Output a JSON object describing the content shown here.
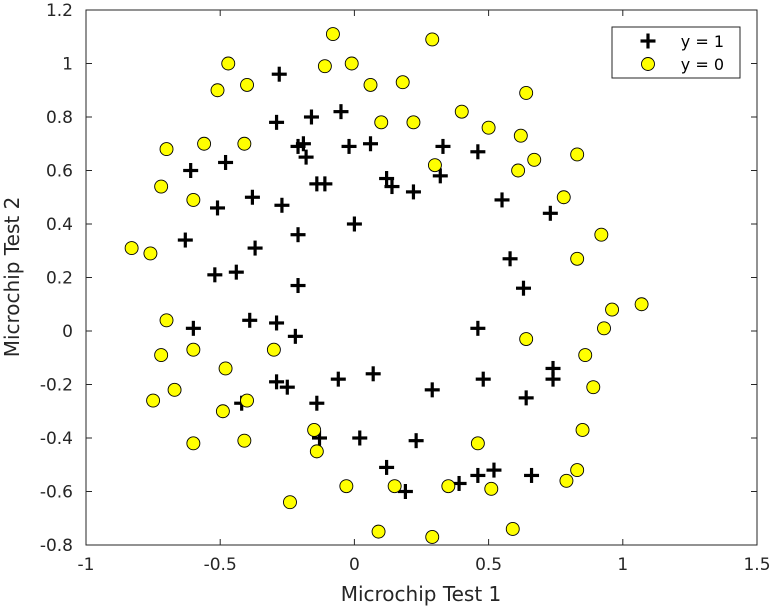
{
  "chart_data": {
    "type": "scatter",
    "title": "",
    "xlabel": "Microchip Test 1",
    "ylabel": "Microchip Test 2",
    "xlim": [
      -1,
      1.5
    ],
    "ylim": [
      -0.8,
      1.2
    ],
    "x_ticks": [
      -1,
      -0.5,
      0,
      0.5,
      1,
      1.5
    ],
    "x_tick_labels": [
      "-1",
      "-0.5",
      "0",
      "0.5",
      "1",
      "1.5"
    ],
    "y_ticks": [
      -0.8,
      -0.6,
      -0.4,
      -0.2,
      0,
      0.2,
      0.4,
      0.6,
      0.8,
      1,
      1.2
    ],
    "y_tick_labels": [
      "-0.8",
      "-0.6",
      "-0.4",
      "-0.2",
      "0",
      "0.2",
      "0.4",
      "0.6",
      "0.8",
      "1",
      "1.2"
    ],
    "grid": false,
    "legend_position": "top-right",
    "colors": {
      "positive": "#000000",
      "negative_fill": "#ffff00",
      "negative_edge": "#000000"
    },
    "series": [
      {
        "name": "y = 1",
        "marker": "plus",
        "points": [
          [
            -0.28,
            0.96
          ],
          [
            -0.16,
            0.8
          ],
          [
            -0.05,
            0.82
          ],
          [
            -0.29,
            0.78
          ],
          [
            -0.02,
            0.69
          ],
          [
            -0.19,
            0.7
          ],
          [
            -0.21,
            0.69
          ],
          [
            -0.18,
            0.65
          ],
          [
            0.06,
            0.7
          ],
          [
            -0.48,
            0.63
          ],
          [
            -0.61,
            0.6
          ],
          [
            0.33,
            0.69
          ],
          [
            0.46,
            0.67
          ],
          [
            -0.14,
            0.55
          ],
          [
            -0.11,
            0.55
          ],
          [
            0.12,
            0.57
          ],
          [
            0.14,
            0.54
          ],
          [
            0.22,
            0.52
          ],
          [
            0.32,
            0.58
          ],
          [
            -0.38,
            0.5
          ],
          [
            -0.51,
            0.46
          ],
          [
            -0.27,
            0.47
          ],
          [
            0.55,
            0.49
          ],
          [
            0.73,
            0.44
          ],
          [
            0.0,
            0.4
          ],
          [
            -0.21,
            0.36
          ],
          [
            -0.37,
            0.31
          ],
          [
            -0.63,
            0.34
          ],
          [
            0.58,
            0.27
          ],
          [
            -0.52,
            0.21
          ],
          [
            -0.44,
            0.22
          ],
          [
            -0.21,
            0.17
          ],
          [
            0.63,
            0.16
          ],
          [
            -0.39,
            0.04
          ],
          [
            -0.29,
            0.03
          ],
          [
            -0.6,
            0.01
          ],
          [
            0.46,
            0.01
          ],
          [
            -0.22,
            -0.02
          ],
          [
            0.74,
            -0.14
          ],
          [
            -0.06,
            -0.18
          ],
          [
            0.07,
            -0.16
          ],
          [
            -0.29,
            -0.19
          ],
          [
            -0.25,
            -0.21
          ],
          [
            0.48,
            -0.18
          ],
          [
            0.74,
            -0.18
          ],
          [
            0.29,
            -0.22
          ],
          [
            -0.42,
            -0.27
          ],
          [
            0.64,
            -0.25
          ],
          [
            -0.14,
            -0.27
          ],
          [
            -0.13,
            -0.4
          ],
          [
            0.02,
            -0.4
          ],
          [
            0.23,
            -0.41
          ],
          [
            0.12,
            -0.51
          ],
          [
            0.19,
            -0.6
          ],
          [
            0.39,
            -0.57
          ],
          [
            0.46,
            -0.54
          ],
          [
            0.52,
            -0.52
          ],
          [
            0.66,
            -0.54
          ]
        ]
      },
      {
        "name": "y = 0",
        "marker": "circle",
        "points": [
          [
            -0.08,
            1.11
          ],
          [
            0.29,
            1.09
          ],
          [
            -0.47,
            1.0
          ],
          [
            -0.11,
            0.99
          ],
          [
            -0.01,
            1.0
          ],
          [
            -0.51,
            0.9
          ],
          [
            -0.4,
            0.92
          ],
          [
            0.06,
            0.92
          ],
          [
            0.18,
            0.93
          ],
          [
            0.64,
            0.89
          ],
          [
            0.4,
            0.82
          ],
          [
            0.1,
            0.78
          ],
          [
            0.22,
            0.78
          ],
          [
            0.5,
            0.76
          ],
          [
            -0.56,
            0.7
          ],
          [
            -0.41,
            0.7
          ],
          [
            -0.7,
            0.68
          ],
          [
            0.62,
            0.73
          ],
          [
            0.67,
            0.64
          ],
          [
            0.83,
            0.66
          ],
          [
            0.3,
            0.62
          ],
          [
            0.61,
            0.6
          ],
          [
            -0.72,
            0.54
          ],
          [
            -0.6,
            0.49
          ],
          [
            0.78,
            0.5
          ],
          [
            0.92,
            0.36
          ],
          [
            -0.83,
            0.31
          ],
          [
            -0.76,
            0.29
          ],
          [
            0.83,
            0.27
          ],
          [
            0.96,
            0.08
          ],
          [
            1.07,
            0.1
          ],
          [
            0.93,
            0.01
          ],
          [
            -0.7,
            0.04
          ],
          [
            -0.6,
            -0.07
          ],
          [
            0.64,
            -0.03
          ],
          [
            -0.3,
            -0.07
          ],
          [
            -0.72,
            -0.09
          ],
          [
            0.86,
            -0.09
          ],
          [
            -0.48,
            -0.14
          ],
          [
            -0.67,
            -0.22
          ],
          [
            0.89,
            -0.21
          ],
          [
            -0.75,
            -0.26
          ],
          [
            -0.4,
            -0.26
          ],
          [
            -0.49,
            -0.3
          ],
          [
            -0.15,
            -0.37
          ],
          [
            0.85,
            -0.37
          ],
          [
            -0.6,
            -0.42
          ],
          [
            -0.41,
            -0.41
          ],
          [
            -0.14,
            -0.45
          ],
          [
            0.46,
            -0.42
          ],
          [
            0.83,
            -0.52
          ],
          [
            0.79,
            -0.56
          ],
          [
            -0.03,
            -0.58
          ],
          [
            0.15,
            -0.58
          ],
          [
            0.35,
            -0.58
          ],
          [
            0.51,
            -0.59
          ],
          [
            -0.24,
            -0.64
          ],
          [
            0.59,
            -0.74
          ],
          [
            0.09,
            -0.75
          ],
          [
            0.29,
            -0.77
          ]
        ]
      }
    ]
  }
}
